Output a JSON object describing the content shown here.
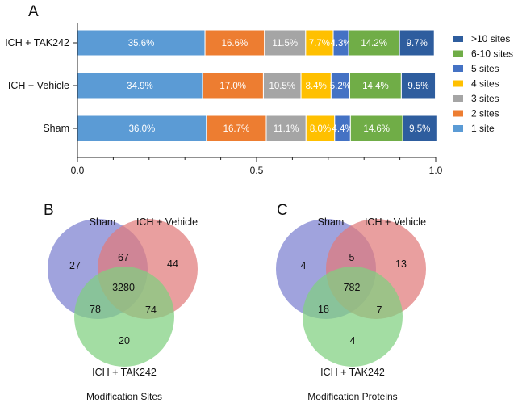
{
  "panels": {
    "a": "A",
    "b": "B",
    "c": "C"
  },
  "chart_data": [
    {
      "type": "bar",
      "orientation": "horizontal",
      "stacked": true,
      "categories": [
        "ICH + TAK242",
        "ICH + Vehicle",
        "Sham"
      ],
      "series": [
        {
          "name": "1 site",
          "color": "#5b9bd5",
          "values": [
            0.356,
            0.349,
            0.36
          ],
          "labels": [
            "35.6%",
            "34.9%",
            "36.0%"
          ]
        },
        {
          "name": "2 sites",
          "color": "#ed7d31",
          "values": [
            0.166,
            0.17,
            0.167
          ],
          "labels": [
            "16.6%",
            "17.0%",
            "16.7%"
          ]
        },
        {
          "name": "3 sites",
          "color": "#a5a5a5",
          "values": [
            0.115,
            0.105,
            0.111
          ],
          "labels": [
            "11.5%",
            "10.5%",
            "11.1%"
          ]
        },
        {
          "name": "4 sites",
          "color": "#ffc000",
          "values": [
            0.077,
            0.084,
            0.08
          ],
          "labels": [
            "7.7%",
            "8.4%",
            "8.0%"
          ]
        },
        {
          "name": "5 sites",
          "color": "#4472c4",
          "values": [
            0.043,
            0.052,
            0.044
          ],
          "labels": [
            "4.3%",
            "5.2%",
            "4.4%"
          ]
        },
        {
          "name": "6-10 sites",
          "color": "#70ad47",
          "values": [
            0.142,
            0.144,
            0.146
          ],
          "labels": [
            "14.2%",
            "14.4%",
            "14.6%"
          ]
        },
        {
          "name": ">10 sites",
          "color": "#2e5d9e",
          "values": [
            0.097,
            0.095,
            0.095
          ],
          "labels": [
            "9.7%",
            "9.5%",
            "9.5%"
          ]
        }
      ],
      "legend_order": [
        ">10 sites",
        "6-10 sites",
        "5 sites",
        "4 sites",
        "3 sites",
        "2 sites",
        "1 site"
      ],
      "xlim": [
        0,
        1
      ],
      "xticks": [
        0,
        0.5,
        1
      ],
      "xtick_labels": [
        "0.0",
        "0.5",
        "1.0"
      ],
      "legend_position": "right"
    },
    {
      "type": "venn",
      "sets": [
        "Sham",
        "ICH + Vehicle",
        "ICH + TAK242"
      ],
      "set_colors": [
        "#7b7fd0",
        "#e07a7a",
        "#7fd07f"
      ],
      "regions": {
        "sham_only": 27,
        "vehicle_only": 44,
        "tak242_only": 20,
        "sham_vehicle": 67,
        "sham_tak242": 78,
        "vehicle_tak242": 74,
        "all": 3280
      },
      "caption": "Modification Sites"
    },
    {
      "type": "venn",
      "sets": [
        "Sham",
        "ICH + Vehicle",
        "ICH + TAK242"
      ],
      "set_colors": [
        "#7b7fd0",
        "#e07a7a",
        "#7fd07f"
      ],
      "regions": {
        "sham_only": 4,
        "vehicle_only": 13,
        "tak242_only": 4,
        "sham_vehicle": 5,
        "sham_tak242": 18,
        "vehicle_tak242": 7,
        "all": 782
      },
      "caption": "Modification Proteins"
    }
  ]
}
